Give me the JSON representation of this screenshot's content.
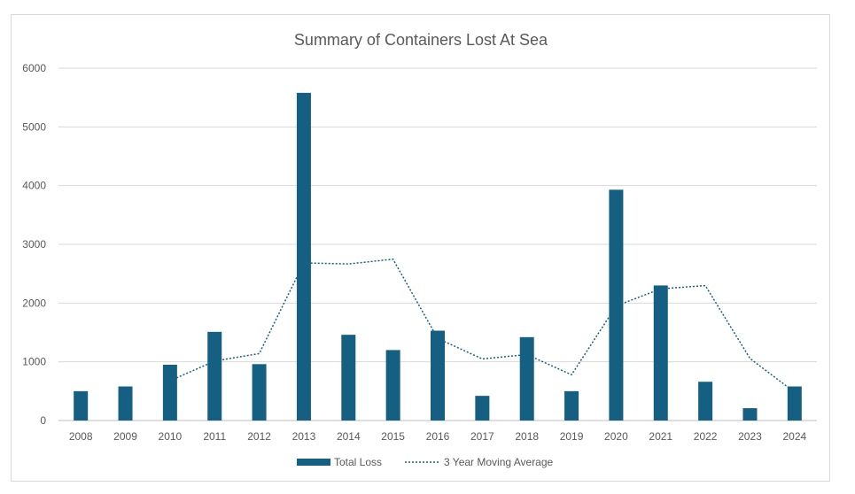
{
  "chart_data": {
    "type": "bar",
    "title": "Summary of Containers Lost At Sea",
    "xlabel": "",
    "ylabel": "",
    "categories": [
      "2008",
      "2009",
      "2010",
      "2011",
      "2012",
      "2013",
      "2014",
      "2015",
      "2016",
      "2017",
      "2018",
      "2019",
      "2020",
      "2021",
      "2022",
      "2023",
      "2024"
    ],
    "series": [
      {
        "name": "Total Loss",
        "kind": "bar",
        "color": "#156082",
        "values": [
          500,
          580,
          950,
          1510,
          960,
          5580,
          1460,
          1200,
          1530,
          420,
          1420,
          500,
          3930,
          2300,
          660,
          210,
          580
        ]
      },
      {
        "name": "3 Year Moving Average",
        "kind": "line",
        "style": "dotted",
        "color": "#156082",
        "start_index": 2,
        "values": [
          null,
          null,
          677,
          1013,
          1140,
          2683,
          2667,
          2747,
          1397,
          1050,
          1123,
          780,
          1950,
          2243,
          2297,
          1057,
          483
        ]
      }
    ],
    "ylim": [
      0,
      6000
    ],
    "yticks": [
      0,
      1000,
      2000,
      3000,
      4000,
      5000,
      6000
    ],
    "grid": true,
    "legend": "bottom-center"
  }
}
